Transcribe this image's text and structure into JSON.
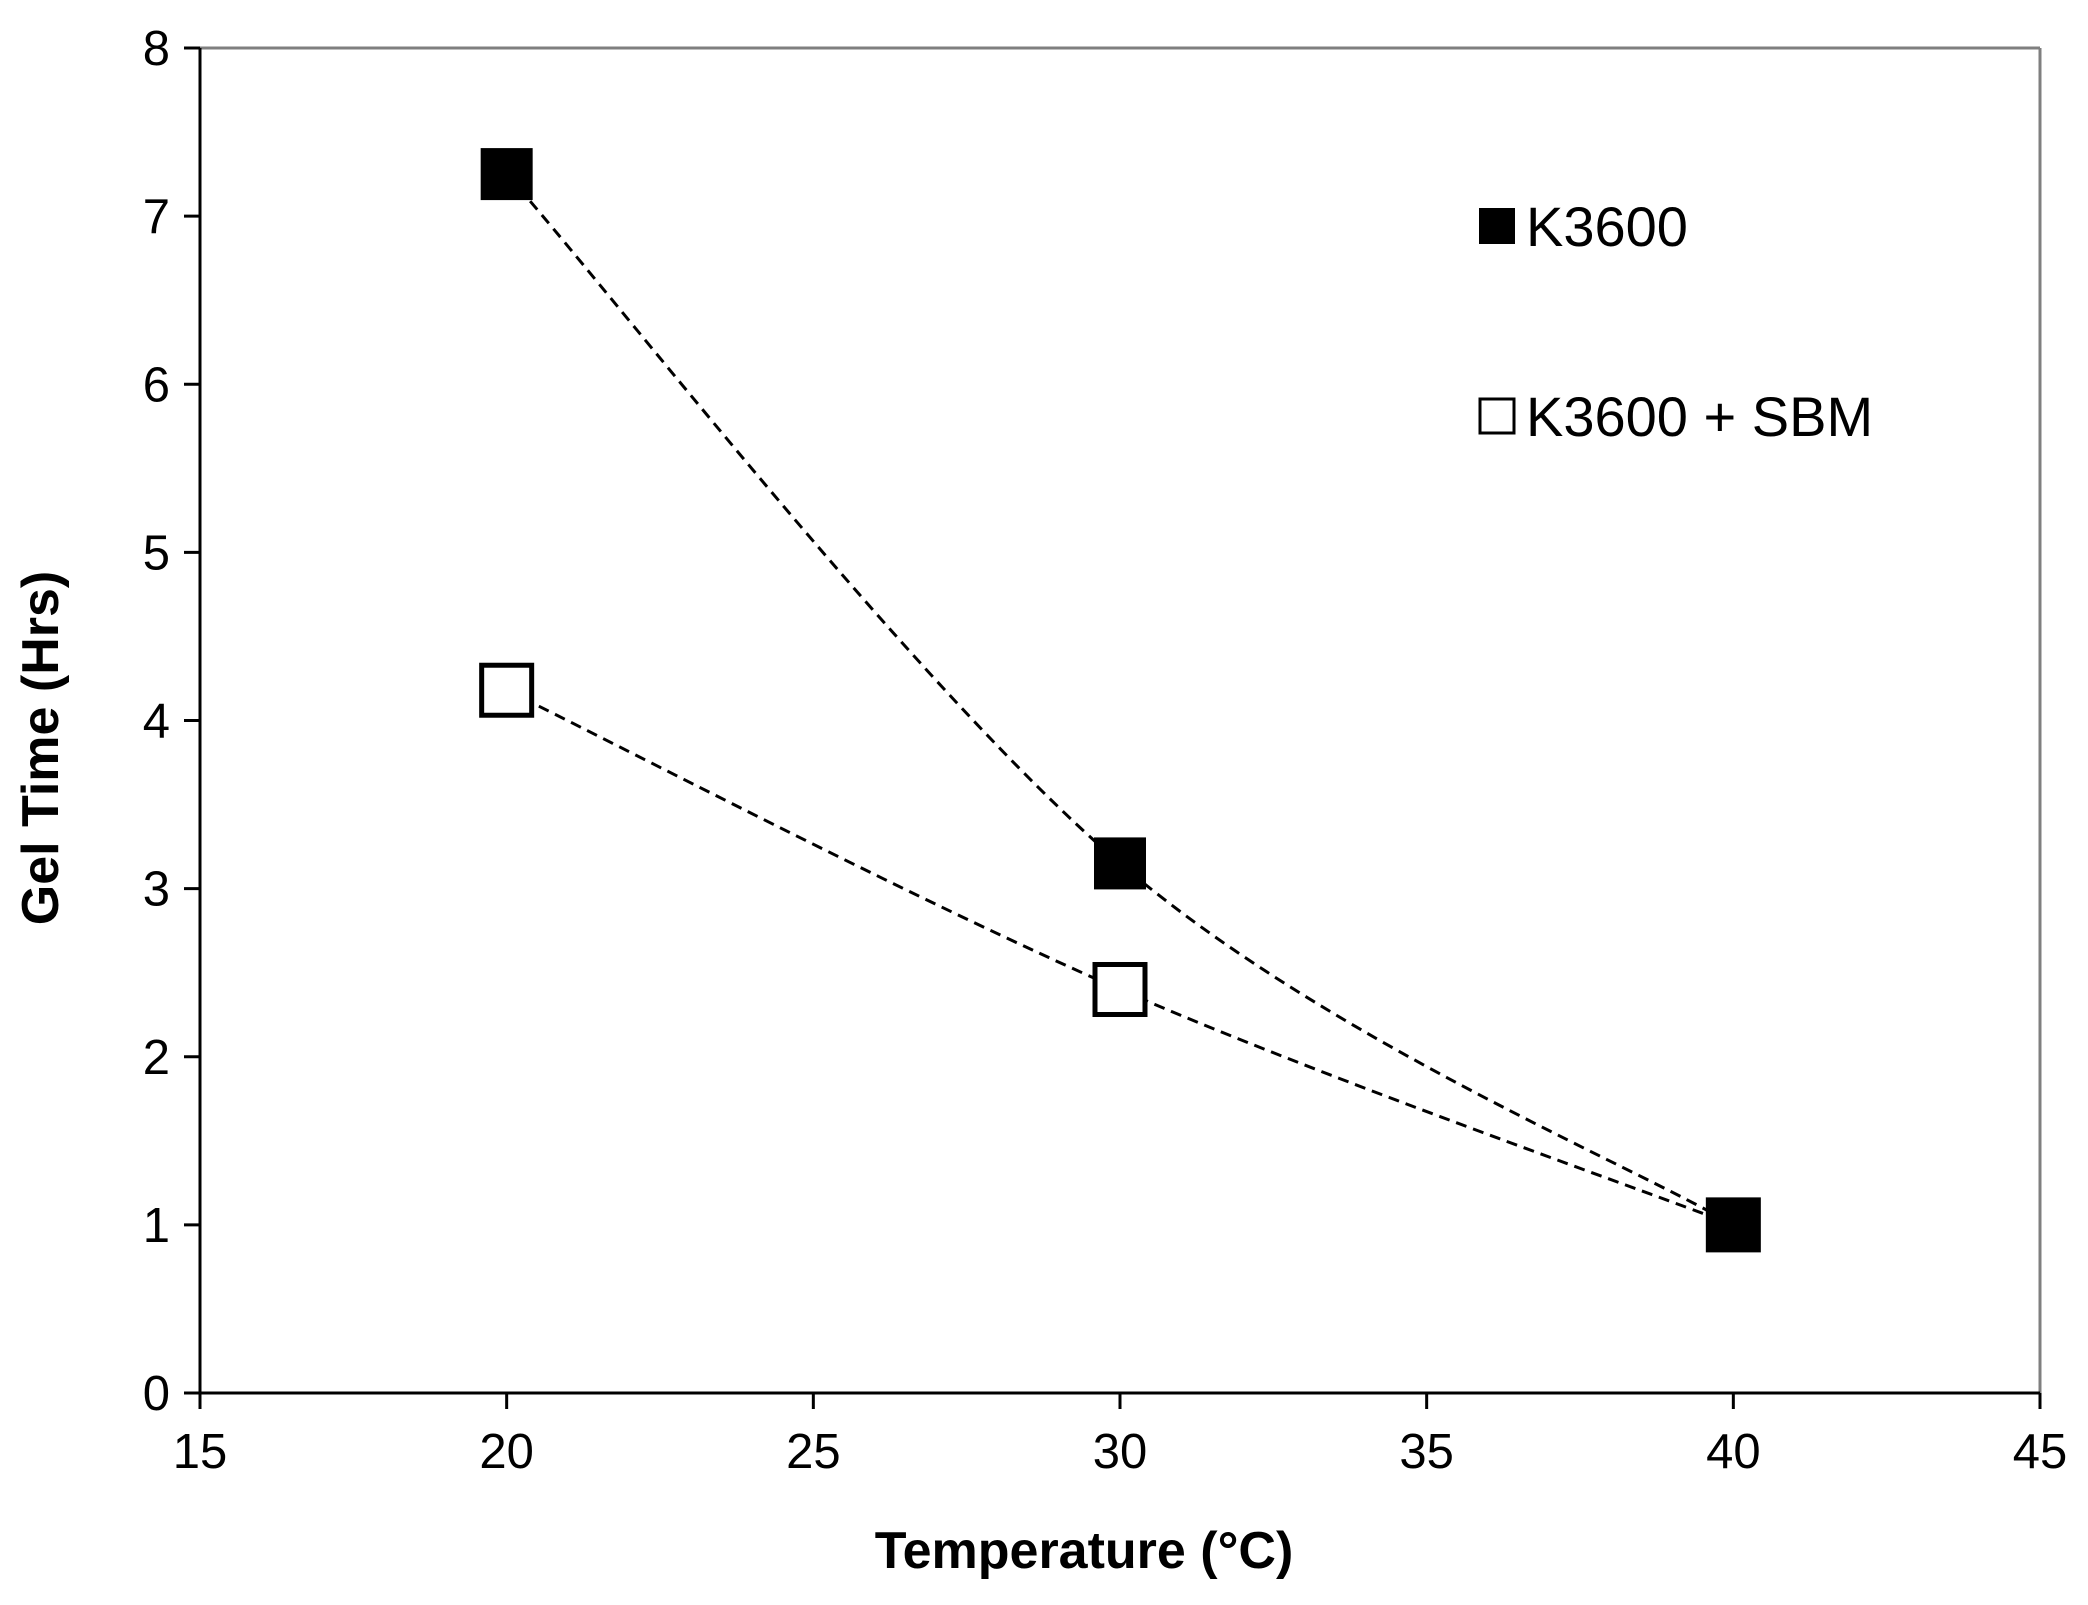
{
  "chart_data": {
    "type": "scatter",
    "title": "",
    "xlabel": "Temperature (°C)",
    "ylabel": "Gel Time (Hrs)",
    "xlim": [
      15,
      45
    ],
    "ylim": [
      0,
      8
    ],
    "xticks": [
      15,
      20,
      25,
      30,
      35,
      40,
      45
    ],
    "yticks": [
      0,
      1,
      2,
      3,
      4,
      5,
      6,
      7,
      8
    ],
    "grid": false,
    "legend_position": "top-right",
    "series": [
      {
        "name": "K3600",
        "marker": "filled-square",
        "line": "dashed-smooth",
        "x": [
          20,
          30,
          40
        ],
        "y": [
          7.25,
          3.15,
          1.0
        ]
      },
      {
        "name": "K3600 + SBM",
        "marker": "open-square",
        "line": "dashed-smooth",
        "x": [
          20,
          30,
          40
        ],
        "y": [
          4.18,
          2.4,
          1.0
        ]
      }
    ],
    "colors": {
      "axis": "#000000",
      "frame": "#7f7f7f",
      "marker": "#000000",
      "line": "#000000"
    }
  }
}
